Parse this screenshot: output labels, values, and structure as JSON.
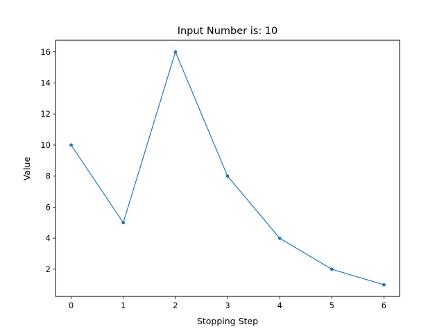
{
  "chart_data": {
    "type": "line",
    "title": "Input Number is: 10",
    "xlabel": "Stopping Step",
    "ylabel": "Value",
    "x": [
      0,
      1,
      2,
      3,
      4,
      5,
      6
    ],
    "series": [
      {
        "values": [
          10,
          5,
          16,
          8,
          4,
          2,
          1
        ],
        "color": "#1f77b4",
        "marker": "point"
      }
    ],
    "xlim": [
      -0.3,
      6.3
    ],
    "ylim": [
      0.25,
      16.75
    ],
    "xticks": [
      0,
      1,
      2,
      3,
      4,
      5,
      6
    ],
    "yticks": [
      2,
      4,
      6,
      8,
      10,
      12,
      14,
      16
    ],
    "grid": false
  }
}
